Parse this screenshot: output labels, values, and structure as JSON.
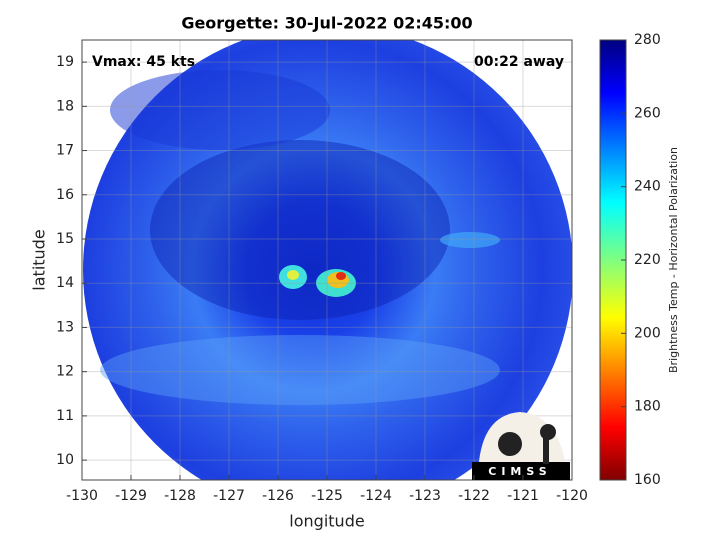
{
  "chart_data": {
    "type": "image",
    "title": "Georgette: 30-Jul-2022 02:45:00",
    "annotations": [
      "Vmax: 45 kts",
      "00:22 away"
    ],
    "xlabel": "longitude",
    "ylabel": "latitude",
    "xlim": [
      -130,
      -120
    ],
    "ylim": [
      9.55,
      19.5
    ],
    "xticks": [
      -130,
      -129,
      -128,
      -127,
      -126,
      -125,
      -124,
      -123,
      -122,
      -121,
      -120
    ],
    "yticks": [
      10,
      11,
      12,
      13,
      14,
      15,
      16,
      17,
      18,
      19
    ],
    "grid": true,
    "colorbar": {
      "label": "Brightness Temp - Horizontal Polarization",
      "lim": [
        160,
        280
      ],
      "ticks": [
        160,
        180,
        200,
        220,
        240,
        260,
        280
      ],
      "colormap": "jet"
    },
    "logo": "CIMSS"
  }
}
